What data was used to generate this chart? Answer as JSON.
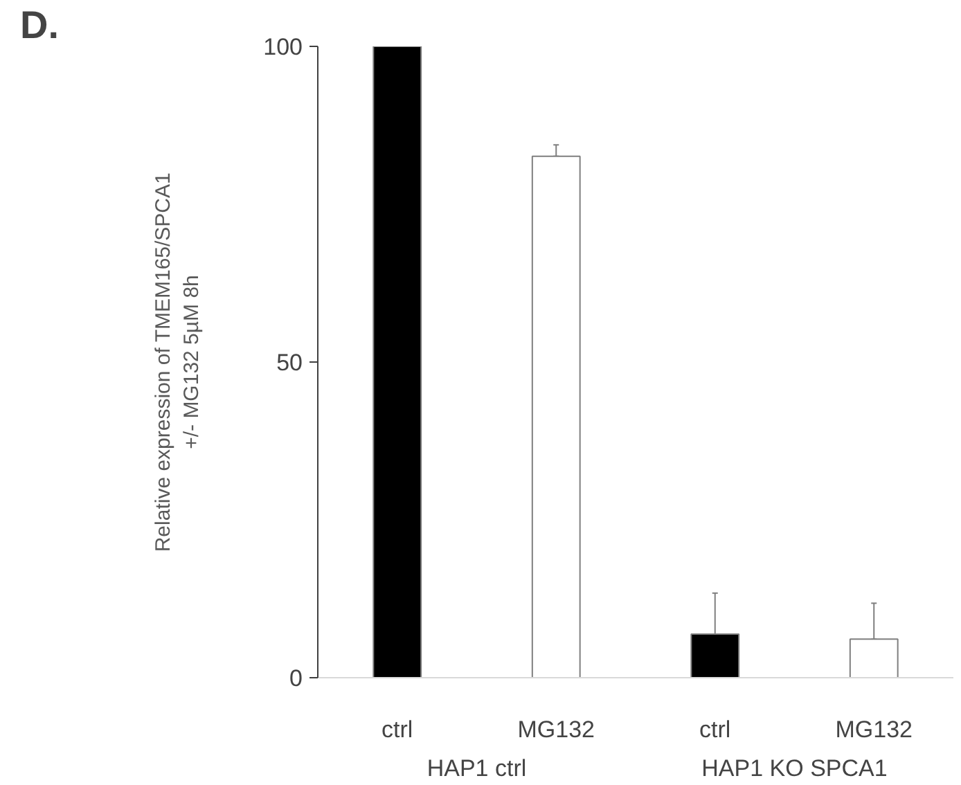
{
  "chart_data": {
    "type": "bar",
    "title": "D.",
    "ylabel": "Relative expression of TMEM165/SPCA1\n+/- MG132 5µM 8h",
    "categories": [
      "ctrl",
      "MG132",
      "ctrl",
      "MG132"
    ],
    "values": [
      100,
      82.6,
      6.9,
      6.1
    ],
    "colors": [
      "#000000",
      "#ffffff",
      "#000000",
      "#ffffff"
    ],
    "errors": [
      [
        99.5,
        100
      ],
      [
        82.6,
        84.4
      ],
      [
        6.9,
        13.4
      ],
      [
        6.1,
        11.8
      ]
    ],
    "annotations": [
      "HAP1 ctrl",
      "HAP1 KO SPCA1"
    ],
    "ylim": [
      0,
      100
    ],
    "yticks": [
      0,
      50,
      100
    ],
    "grid": false
  }
}
